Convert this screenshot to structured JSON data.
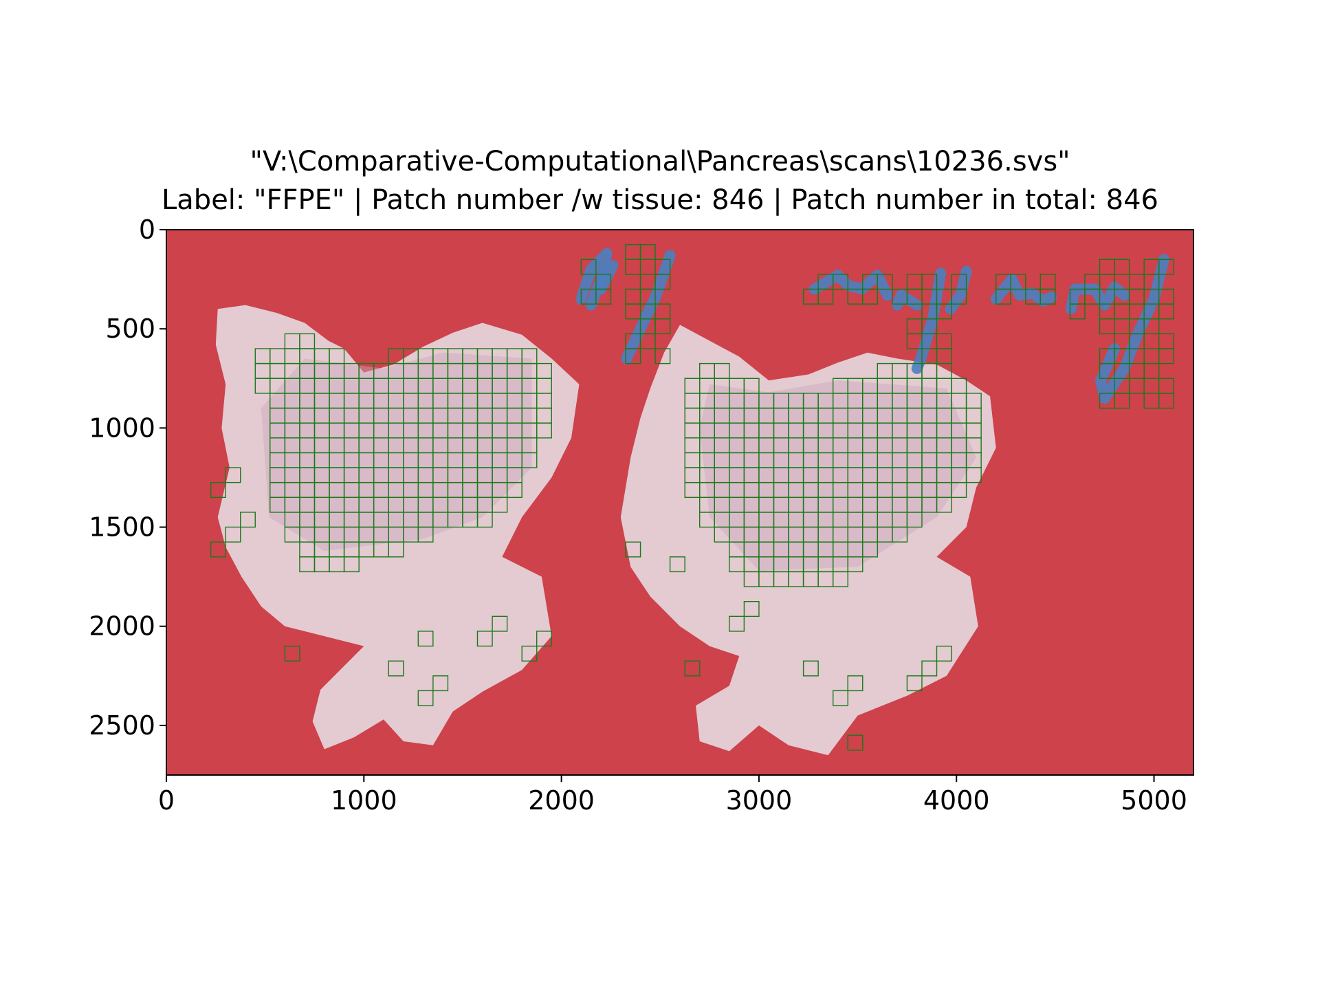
{
  "title": {
    "line1": "\"V:\\Comparative-Computational\\Pancreas\\scans\\10236.svs\"",
    "line2": "Label: \"FFPE\" | Patch number /w tissue: 846 | Patch number in total: 846"
  },
  "colors": {
    "background": "#cd424b",
    "tissue": "#e6d6dc",
    "tissue_stain": "#c9a7bd",
    "marker": "#4a7fc0",
    "patch_outline": "#1a7a1a"
  },
  "chart_data": {
    "type": "image",
    "title": "\"V:\\Comparative-Computational\\Pancreas\\scans\\10236.svs\"\nLabel: \"FFPE\" | Patch number /w tissue: 846 | Patch number in total: 846",
    "xlim": [
      0,
      5200
    ],
    "ylim": [
      2750,
      0
    ],
    "x_ticks": [
      0,
      1000,
      2000,
      3000,
      4000,
      5000
    ],
    "y_ticks": [
      0,
      500,
      1000,
      1500,
      2000,
      2500
    ],
    "x_tick_labels": [
      "0",
      "1000",
      "2000",
      "3000",
      "4000",
      "5000"
    ],
    "y_tick_labels": [
      "0",
      "500",
      "1000",
      "1500",
      "2000",
      "2500"
    ],
    "patch_size": 75,
    "patch_counts": {
      "with_tissue": 846,
      "total": 846
    },
    "grid": false
  }
}
